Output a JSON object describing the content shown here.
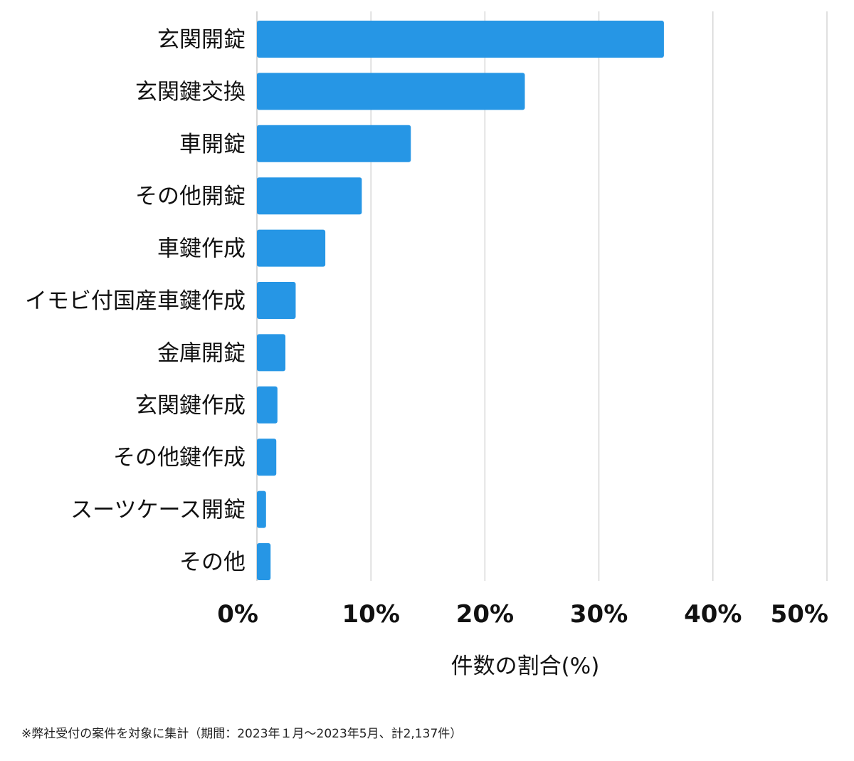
{
  "chart_data": {
    "type": "bar",
    "orientation": "horizontal",
    "categories": [
      "玄関開錠",
      "玄関鍵交換",
      "車開錠",
      "その他開錠",
      "車鍵作成",
      "イモビ付国産車鍵作成",
      "金庫開錠",
      "玄関鍵作成",
      "その他鍵作成",
      "スーツケース開錠",
      "その他"
    ],
    "values": [
      35.7,
      23.5,
      13.5,
      9.2,
      6.0,
      3.4,
      2.5,
      1.8,
      1.7,
      0.8,
      1.2
    ],
    "xlabel": "件数の割合(%)",
    "xlim": [
      0,
      50
    ],
    "xticks": [
      0,
      10,
      20,
      30,
      40,
      50
    ],
    "xtick_labels": [
      "0%",
      "10%",
      "20%",
      "30%",
      "40%",
      "50%"
    ],
    "grid": true,
    "bar_color": "#2696e5"
  },
  "footnote": "※弊社受付の案件を対象に集計（期間：2023年１月〜2023年5月、計2,137件）"
}
